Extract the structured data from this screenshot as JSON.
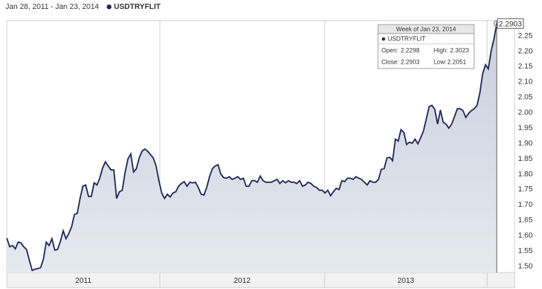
{
  "header": {
    "range": "Jan 28, 2011 - Jan 23, 2014"
  },
  "chart_data": {
    "type": "line",
    "series": [
      {
        "name": "USDTRYFLIT",
        "color": "#1f2d5a",
        "values": [
          1.592,
          1.564,
          1.568,
          1.557,
          1.579,
          1.577,
          1.564,
          1.555,
          1.52,
          1.487,
          1.491,
          1.493,
          1.496,
          1.524,
          1.579,
          1.568,
          1.59,
          1.553,
          1.555,
          1.581,
          1.616,
          1.59,
          1.607,
          1.629,
          1.669,
          1.673,
          1.721,
          1.761,
          1.765,
          1.728,
          1.728,
          1.772,
          1.765,
          1.787,
          1.82,
          1.84,
          1.827,
          1.814,
          1.814,
          1.721,
          1.743,
          1.748,
          1.805,
          1.849,
          1.866,
          1.807,
          1.818,
          1.853,
          1.875,
          1.882,
          1.875,
          1.864,
          1.853,
          1.827,
          1.779,
          1.739,
          1.721,
          1.735,
          1.726,
          1.739,
          1.743,
          1.761,
          1.77,
          1.776,
          1.761,
          1.774,
          1.772,
          1.774,
          1.757,
          1.735,
          1.732,
          1.757,
          1.792,
          1.818,
          1.827,
          1.831,
          1.8,
          1.789,
          1.787,
          1.792,
          1.783,
          1.787,
          1.792,
          1.783,
          1.787,
          1.761,
          1.761,
          1.779,
          1.779,
          1.774,
          1.794,
          1.779,
          1.774,
          1.774,
          1.774,
          1.779,
          1.783,
          1.77,
          1.779,
          1.772,
          1.779,
          1.774,
          1.774,
          1.77,
          1.779,
          1.761,
          1.765,
          1.774,
          1.77,
          1.761,
          1.757,
          1.748,
          1.748,
          1.739,
          1.748,
          1.73,
          1.743,
          1.754,
          1.75,
          1.779,
          1.776,
          1.787,
          1.787,
          1.783,
          1.792,
          1.787,
          1.783,
          1.774,
          1.765,
          1.779,
          1.774,
          1.774,
          1.783,
          1.816,
          1.818,
          1.853,
          1.855,
          1.844,
          1.914,
          1.908,
          1.945,
          1.936,
          1.897,
          1.904,
          1.901,
          1.914,
          1.899,
          1.919,
          1.941,
          1.98,
          2.02,
          2.024,
          2.011,
          1.963,
          2.009,
          1.969,
          1.963,
          1.95,
          1.963,
          1.987,
          2.013,
          2.013,
          2.007,
          1.985,
          1.998,
          2.007,
          2.013,
          2.024,
          2.064,
          2.127,
          2.156,
          2.143,
          2.2,
          2.239,
          2.2903
        ]
      }
    ],
    "x_labels": [
      "2011",
      "2012",
      "2013"
    ],
    "ylim": [
      1.48,
      2.3
    ],
    "yticks": [
      {
        "value": 1.5,
        "label": "1.50"
      },
      1.55,
      {
        "value": 1.6,
        "label": "1.60"
      },
      1.65,
      {
        "value": 1.7,
        "label": "1.70"
      },
      1.75,
      {
        "value": 1.8,
        "label": "1.80"
      },
      1.85,
      {
        "value": 1.9,
        "label": "1.90"
      },
      1.95,
      {
        "value": 2.0,
        "label": "2.00"
      },
      2.05,
      {
        "value": 2.1,
        "label": "2.10"
      },
      2.15,
      {
        "value": 2.2,
        "label": "2.20"
      },
      2.25
    ],
    "grid": false,
    "tooltip": {
      "title": "Week of Jan 23, 2014",
      "series": "USDTRYFLIT",
      "open_label": "Open:",
      "open": 2.2298,
      "high_label": "High:",
      "high": 2.3023,
      "close_label": "Close:",
      "close": 2.2903,
      "low_label": "Low:",
      "low": 2.2051
    }
  }
}
